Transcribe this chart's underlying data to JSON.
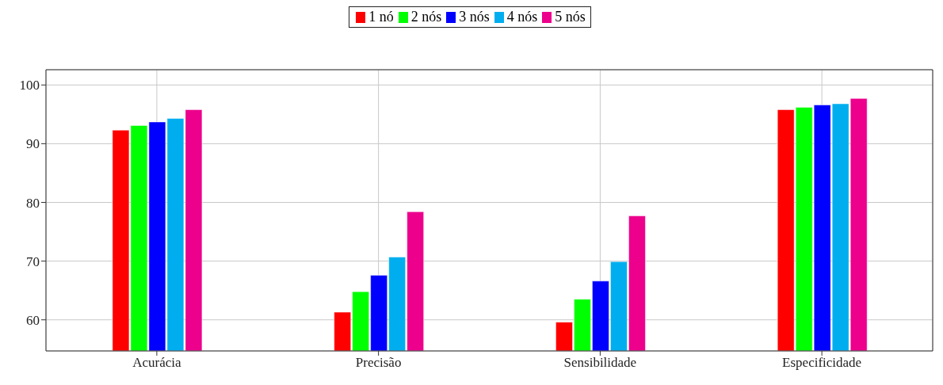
{
  "chart_data": {
    "type": "bar",
    "categories": [
      "Acurácia",
      "Precisão",
      "Sensibilidade",
      "Especificidade"
    ],
    "series": [
      {
        "name": "1 nó",
        "color": "#ff0000",
        "values": [
          92.3,
          61.3,
          59.6,
          95.8
        ]
      },
      {
        "name": "2 nós",
        "color": "#00ff00",
        "values": [
          93.1,
          64.8,
          63.5,
          96.2
        ]
      },
      {
        "name": "3 nós",
        "color": "#0000ff",
        "values": [
          93.7,
          67.6,
          66.6,
          96.6
        ]
      },
      {
        "name": "4 nós",
        "color": "#00aeef",
        "values": [
          94.3,
          70.7,
          69.9,
          96.8
        ]
      },
      {
        "name": "5 nós",
        "color": "#ec008c",
        "values": [
          95.8,
          78.4,
          77.7,
          97.7
        ]
      }
    ],
    "ylim": [
      54.7,
      102.6
    ],
    "yticks": [
      60,
      70,
      80,
      90,
      100
    ],
    "grid": true,
    "legend": "top"
  }
}
